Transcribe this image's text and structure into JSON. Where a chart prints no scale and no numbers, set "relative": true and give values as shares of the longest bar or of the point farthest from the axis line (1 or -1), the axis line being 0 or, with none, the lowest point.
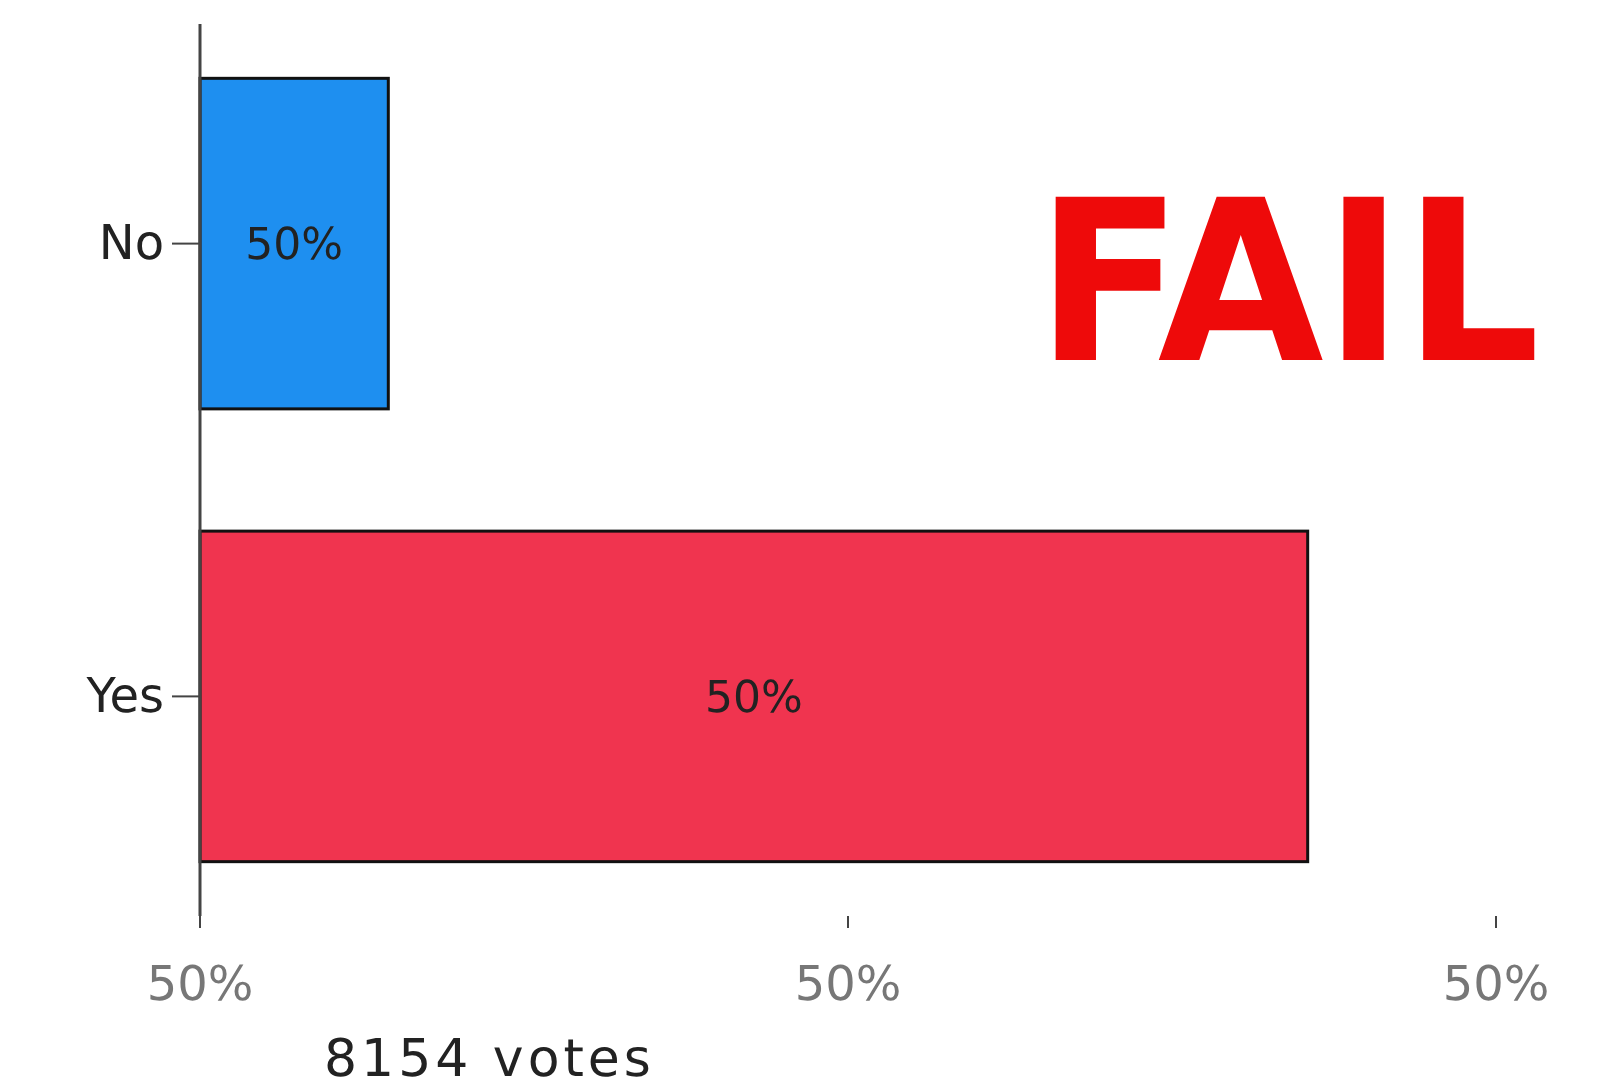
{
  "chart_data": {
    "type": "bar",
    "orientation": "horizontal",
    "relative": true,
    "categories": [
      "No",
      "Yes"
    ],
    "values": [
      0.17,
      1
    ],
    "colors": [
      "#1e8ff0",
      "#f0344f"
    ],
    "annotations": [
      "FAIL",
      "8154 votes",
      "50%",
      "50%",
      "50%",
      "50%",
      "50%"
    ]
  }
}
